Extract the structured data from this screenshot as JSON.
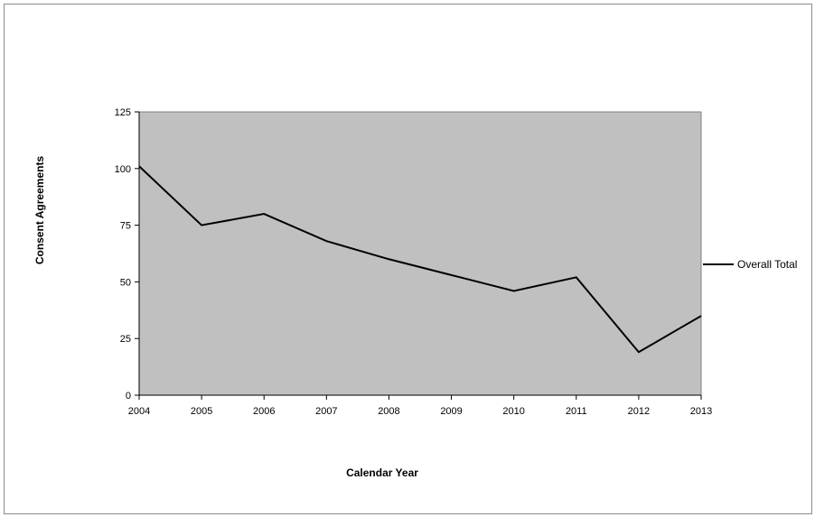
{
  "chart_data": {
    "type": "line",
    "title": "",
    "xlabel": "Calendar Year",
    "ylabel": "Consent Agreements",
    "categories": [
      "2004",
      "2005",
      "2006",
      "2007",
      "2008",
      "2009",
      "2010",
      "2011",
      "2012",
      "2013"
    ],
    "series": [
      {
        "name": "Overall Total",
        "values": [
          101,
          75,
          80,
          68,
          60,
          53,
          46,
          52,
          19,
          35
        ],
        "color": "#000000"
      }
    ],
    "yticks": [
      "0",
      "25",
      "50",
      "75",
      "100",
      "125"
    ],
    "ylim": [
      0,
      125
    ],
    "plot_background": "#c0c0c0",
    "grid": false,
    "legend_position": "right"
  }
}
